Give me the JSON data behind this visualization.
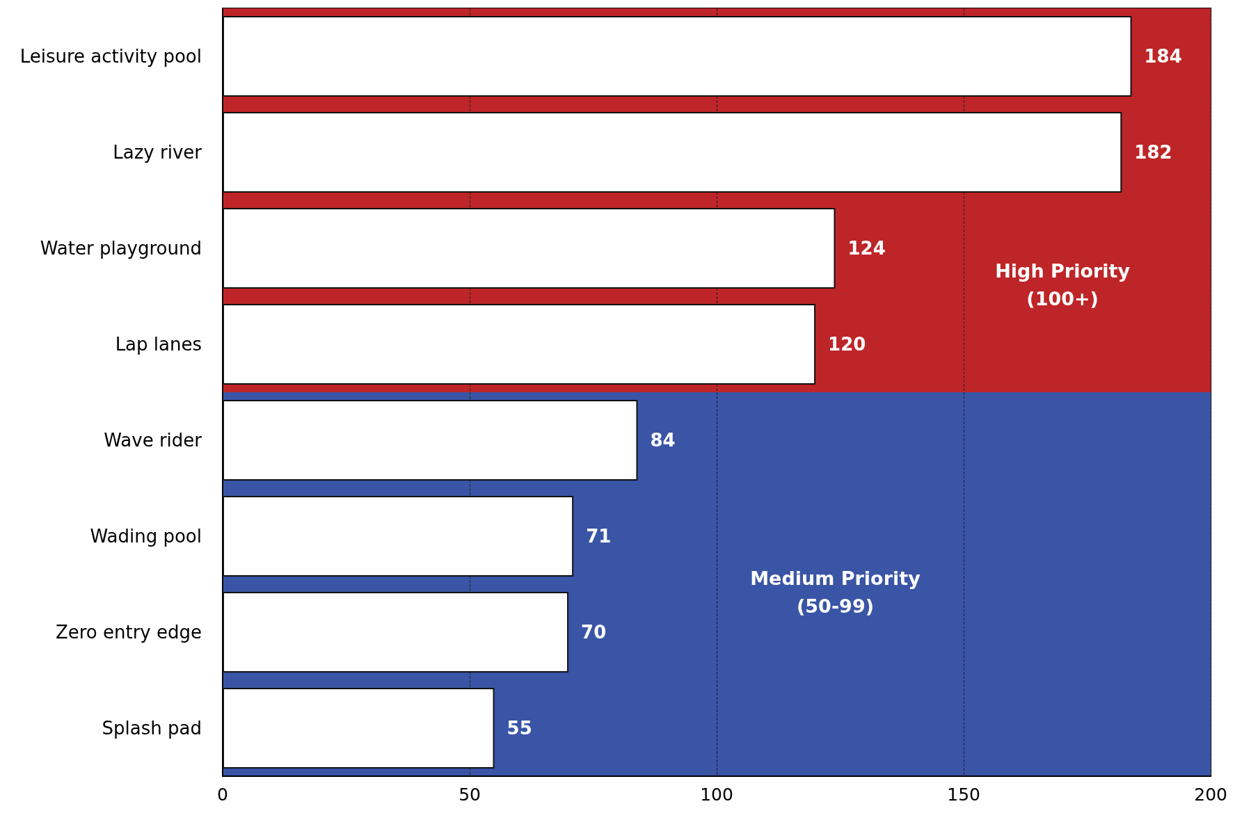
{
  "chart_data": {
    "type": "bar",
    "orientation": "horizontal",
    "categories": [
      "Leisure activity pool",
      "Lazy river",
      "Water playground",
      "Lap lanes",
      "Wave rider",
      "Wading pool",
      "Zero entry edge",
      "Splash pad"
    ],
    "values": [
      184,
      182,
      124,
      120,
      84,
      71,
      70,
      55
    ],
    "color": "#ffffff",
    "data_labels": true,
    "xlim": [
      0,
      200
    ],
    "xticks": [
      0,
      50,
      100,
      150,
      200
    ],
    "grid": "x",
    "bands": [
      {
        "axis": "y",
        "from": "Leisure activity pool",
        "to": "Lap lanes",
        "label": "High Priority\n(100+)",
        "color": "#be2528"
      },
      {
        "axis": "y",
        "from": "Wave rider",
        "to": "Splash pad",
        "label": "Medium Priority\n(50-99)",
        "color": "#3a55a6"
      }
    ]
  }
}
